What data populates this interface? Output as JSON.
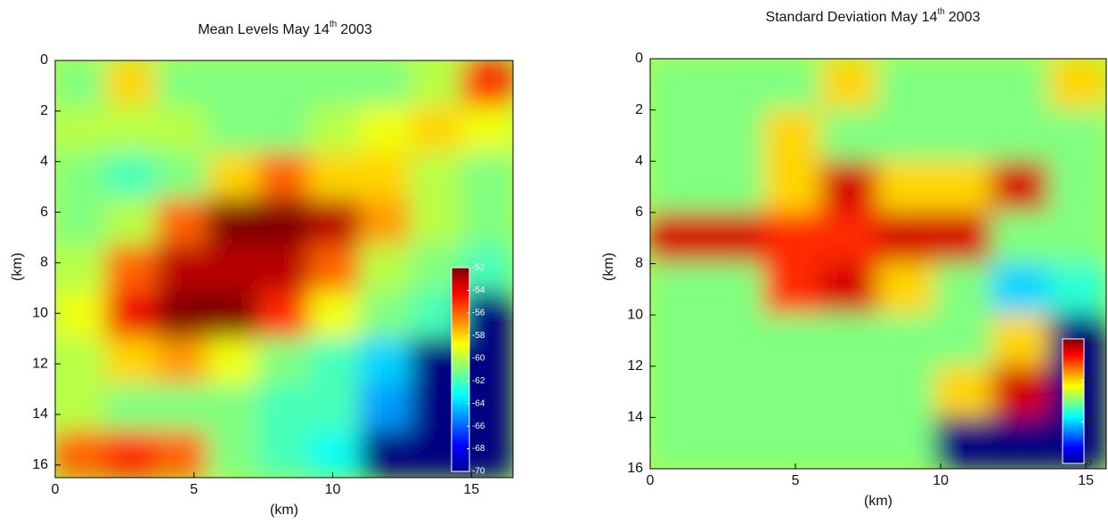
{
  "chart_data": [
    {
      "type": "heatmap",
      "title": "Mean Levels May 14",
      "title_sup": "th",
      "title_end": "2003",
      "xlabel": "(km)",
      "ylabel": "(km)",
      "xlim": [
        0,
        16.5
      ],
      "ylim": [
        0,
        16.5
      ],
      "y_inverted": true,
      "xticks": [
        0,
        5,
        10,
        15
      ],
      "yticks": [
        0,
        2,
        4,
        6,
        8,
        10,
        12,
        14,
        16
      ],
      "colormap": "jet",
      "clim": [
        -70,
        -52
      ],
      "cticks": [
        -52,
        -54,
        -56,
        -58,
        -60,
        -62,
        -64,
        -66,
        -68,
        -70
      ],
      "z": [
        [
          -61,
          -58,
          -61,
          -61,
          -61,
          -61,
          -61,
          -60,
          -55
        ],
        [
          -60,
          -60,
          -60,
          -61,
          -61,
          -60,
          -59,
          -58,
          -59
        ],
        [
          -61,
          -62,
          -61,
          -58,
          -56,
          -58,
          -58,
          -60,
          -61
        ],
        [
          -61,
          -60,
          -56,
          -52,
          -52,
          -53,
          -57,
          -60,
          -61
        ],
        [
          -60,
          -56,
          -53,
          -53,
          -53,
          -56,
          -60,
          -61,
          -62
        ],
        [
          -59,
          -54,
          -52,
          -52,
          -55,
          -59,
          -61,
          -62,
          -70
        ],
        [
          -60,
          -58,
          -57,
          -59,
          -61,
          -62,
          -64,
          -70,
          -70
        ],
        [
          -60,
          -61,
          -61,
          -61,
          -62,
          -62,
          -65,
          -70,
          -70
        ],
        [
          -56,
          -55,
          -56,
          -61,
          -62,
          -63,
          -70,
          -70,
          -70
        ]
      ]
    },
    {
      "type": "heatmap",
      "title": "Standard Deviation May 14",
      "title_sup": "th",
      "title_end": "2003",
      "xlabel": "(km)",
      "ylabel": "(km)",
      "xlim": [
        0,
        15.7
      ],
      "ylim": [
        0,
        16
      ],
      "y_inverted": true,
      "xticks": [
        0,
        5,
        10,
        15
      ],
      "yticks": [
        0,
        2,
        4,
        6,
        8,
        10,
        12,
        14,
        16
      ],
      "colormap": "jet",
      "clim": [
        0,
        6
      ],
      "cticks": [
        6,
        4,
        2,
        0
      ],
      "z": [
        [
          3,
          3,
          3,
          4,
          3,
          3,
          3,
          4
        ],
        [
          3,
          3,
          4,
          3,
          3,
          3,
          3,
          3
        ],
        [
          3,
          3,
          4,
          5.5,
          4,
          4,
          5.5,
          3
        ],
        [
          5.5,
          5.5,
          5,
          5,
          5.5,
          5.5,
          3,
          3
        ],
        [
          3,
          3,
          5,
          5.5,
          4,
          3,
          2,
          2.5
        ],
        [
          3,
          3,
          3,
          3,
          3,
          3,
          4,
          0
        ],
        [
          3,
          3,
          3,
          3,
          3,
          4,
          5.5,
          0
        ],
        [
          3,
          3,
          3,
          3,
          3,
          0,
          0,
          0
        ]
      ]
    }
  ]
}
